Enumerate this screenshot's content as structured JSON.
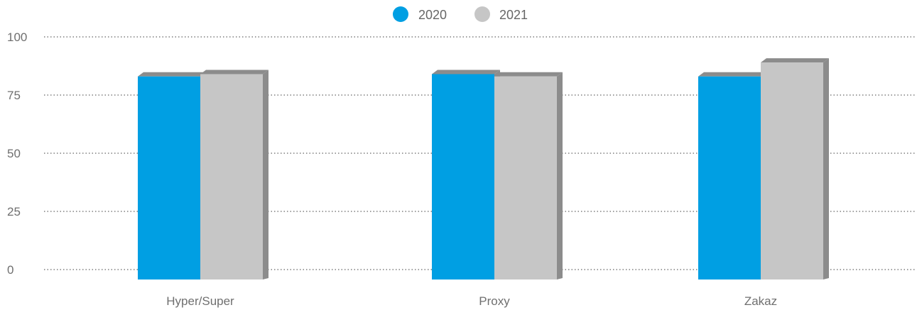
{
  "chart_data": {
    "type": "bar",
    "categories": [
      "Hyper/Super",
      "Proxy",
      "Zakaz"
    ],
    "series": [
      {
        "name": "2020",
        "values": [
          83,
          84,
          83
        ],
        "color": "#009fe3"
      },
      {
        "name": "2021",
        "values": [
          84,
          83,
          89
        ],
        "color": "#c6c6c6"
      }
    ],
    "yticks": [
      "0",
      "25",
      "50",
      "75",
      "100"
    ],
    "ylim": [
      0,
      100
    ],
    "grid": true,
    "legend": "top-center",
    "side_color": "#8c8c8c",
    "grid_color": "#7f7f7f"
  }
}
